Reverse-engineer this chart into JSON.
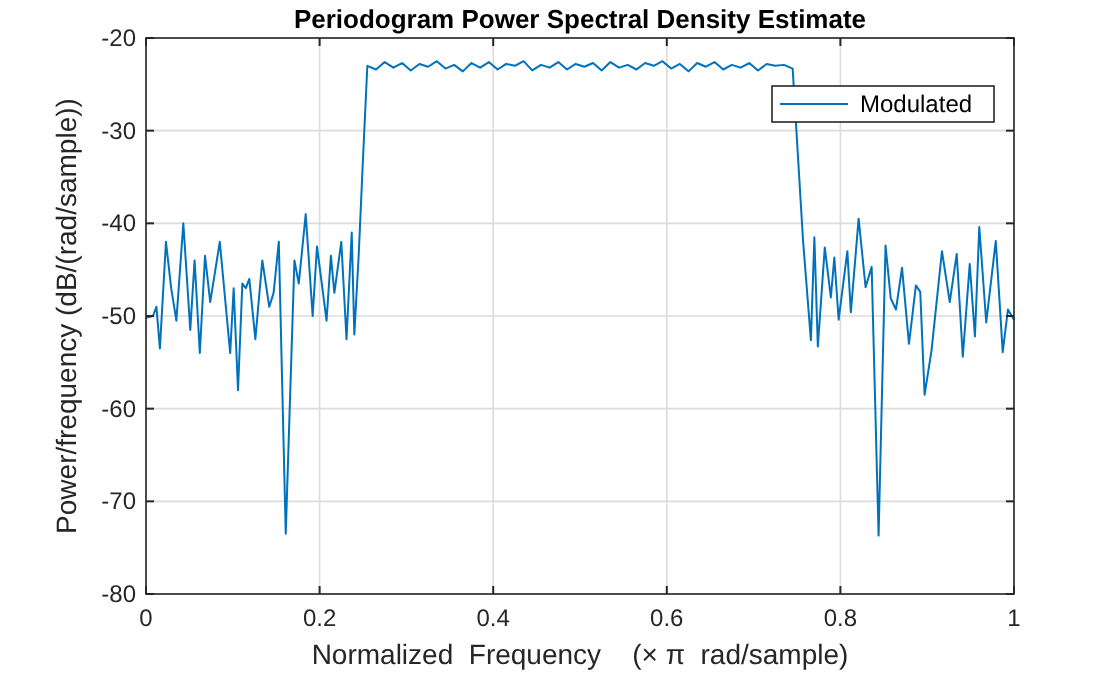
{
  "chart_data": {
    "type": "line",
    "title": "Periodogram Power Spectral Density Estimate",
    "xlabel": "Normalized  Frequency    (× π  rad/sample)",
    "ylabel": "Power/frequency (dB/(rad/sample))",
    "xlim": [
      0,
      1
    ],
    "ylim": [
      -80,
      -20
    ],
    "xticks": [
      0,
      0.2,
      0.4,
      0.6,
      0.8,
      1
    ],
    "yticks": [
      -80,
      -70,
      -60,
      -50,
      -40,
      -30,
      -20
    ],
    "grid": true,
    "legend": "top right",
    "line_style": "solid",
    "marker": "none",
    "x": [
      0,
      0.008,
      0.012,
      0.016,
      0.023,
      0.029,
      0.035,
      0.043,
      0.051,
      0.056,
      0.062,
      0.068,
      0.074,
      0.085,
      0.097,
      0.101,
      0.106,
      0.111,
      0.115,
      0.119,
      0.126,
      0.134,
      0.142,
      0.147,
      0.153,
      0.161,
      0.171,
      0.176,
      0.184,
      0.192,
      0.197,
      0.208,
      0.213,
      0.217,
      0.225,
      0.231,
      0.237,
      0.24,
      0.245,
      0.25,
      0.255,
      0.265,
      0.275,
      0.285,
      0.295,
      0.305,
      0.315,
      0.325,
      0.335,
      0.345,
      0.355,
      0.365,
      0.375,
      0.385,
      0.395,
      0.405,
      0.415,
      0.425,
      0.435,
      0.445,
      0.455,
      0.465,
      0.475,
      0.485,
      0.495,
      0.505,
      0.515,
      0.525,
      0.535,
      0.545,
      0.555,
      0.565,
      0.575,
      0.585,
      0.595,
      0.605,
      0.615,
      0.625,
      0.635,
      0.645,
      0.655,
      0.665,
      0.675,
      0.685,
      0.695,
      0.705,
      0.715,
      0.725,
      0.735,
      0.745,
      0.757,
      0.766,
      0.77,
      0.774,
      0.782,
      0.789,
      0.793,
      0.798,
      0.808,
      0.812,
      0.821,
      0.829,
      0.836,
      0.844,
      0.852,
      0.858,
      0.864,
      0.871,
      0.879,
      0.887,
      0.892,
      0.897,
      0.905,
      0.917,
      0.926,
      0.934,
      0.941,
      0.949,
      0.955,
      0.96,
      0.968,
      0.979,
      0.987,
      0.993,
      1
    ],
    "series": [
      {
        "name": "Modulated",
        "color": "#0072bd",
        "values": [
          -50.2,
          -50,
          -49,
          -53.5,
          -42,
          -47,
          -50.5,
          -40,
          -51.5,
          -44,
          -54,
          -43.5,
          -48.5,
          -42,
          -54,
          -47,
          -58,
          -46.5,
          -47,
          -46,
          -52.5,
          -44,
          -49,
          -47.5,
          -42,
          -73.5,
          -44,
          -46.5,
          -39,
          -50,
          -42.5,
          -50.5,
          -43.5,
          -47.5,
          -42,
          -52.5,
          -41,
          -52,
          -43.5,
          -33,
          -23,
          -23.4,
          -22.6,
          -23.2,
          -22.7,
          -23.5,
          -22.8,
          -23.1,
          -22.5,
          -23.3,
          -22.9,
          -23.6,
          -22.7,
          -23.2,
          -22.6,
          -23.4,
          -22.8,
          -23,
          -22.5,
          -23.5,
          -22.9,
          -23.2,
          -22.6,
          -23.4,
          -22.8,
          -23.1,
          -22.7,
          -23.5,
          -22.6,
          -23.2,
          -22.9,
          -23.4,
          -22.7,
          -23,
          -22.5,
          -23.3,
          -22.8,
          -23.6,
          -22.7,
          -23.1,
          -22.6,
          -23.4,
          -22.9,
          -23.2,
          -22.7,
          -23.5,
          -22.8,
          -23,
          -22.9,
          -23.3,
          -41.9,
          -52.6,
          -41.5,
          -53.3,
          -42.6,
          -48,
          -43.7,
          -50.4,
          -43,
          -49.6,
          -39.5,
          -46.9,
          -44.7,
          -73.7,
          -42.4,
          -48.1,
          -49.3,
          -44.8,
          -53,
          -46.7,
          -47.4,
          -58.5,
          -53.7,
          -43,
          -48.5,
          -43.3,
          -54.4,
          -44.4,
          -52.2,
          -40.4,
          -50.7,
          -41.9,
          -53.9,
          -49.3,
          -50.4
        ]
      }
    ]
  }
}
